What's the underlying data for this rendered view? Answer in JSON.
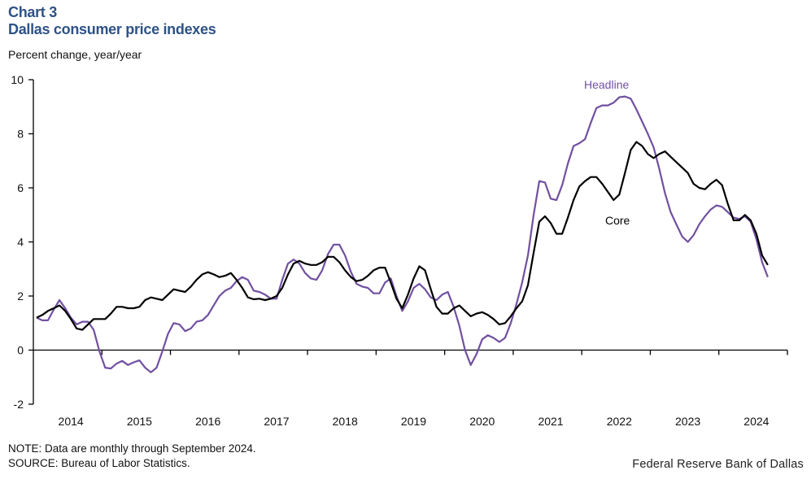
{
  "header": {
    "chart_number": "Chart 3",
    "title": "Dallas consumer price indexes",
    "units": "Percent change, year/year"
  },
  "footer": {
    "note": "NOTE: Data are monthly through September 2024.",
    "source": "SOURCE: Bureau of Labor Statistics.",
    "credit": "Federal Reserve Bank of Dallas"
  },
  "colors": {
    "title": "#2e5286",
    "headline": "#7150a0",
    "core": "#000000"
  },
  "chart_data": {
    "type": "line",
    "title": "Dallas consumer price indexes",
    "ylabel": "Percent change, year/year",
    "xlabel": "",
    "ylim": [
      -2,
      10
    ],
    "yticks": [
      -2,
      0,
      2,
      4,
      6,
      8,
      10
    ],
    "xticklabels": [
      "2014",
      "2015",
      "2016",
      "2017",
      "2018",
      "2019",
      "2020",
      "2021",
      "2022",
      "2023",
      "2024"
    ],
    "x_start": "2014-01",
    "x_end": "2024-09",
    "frequency": "monthly",
    "grid": false,
    "legend": "inline labels",
    "series": [
      {
        "name": "Headline",
        "label_position": "above-peak",
        "values": [
          1.2,
          1.1,
          1.1,
          1.5,
          1.85,
          1.55,
          1.2,
          0.95,
          1.05,
          1.05,
          0.75,
          -0.05,
          -0.65,
          -0.68,
          -0.5,
          -0.4,
          -0.55,
          -0.45,
          -0.38,
          -0.65,
          -0.82,
          -0.65,
          -0.05,
          0.6,
          1.0,
          0.95,
          0.7,
          0.8,
          1.05,
          1.1,
          1.3,
          1.65,
          2.0,
          2.2,
          2.3,
          2.55,
          2.7,
          2.6,
          2.2,
          2.15,
          2.05,
          1.9,
          1.9,
          2.6,
          3.2,
          3.35,
          3.2,
          2.85,
          2.65,
          2.6,
          2.95,
          3.55,
          3.9,
          3.9,
          3.5,
          2.9,
          2.45,
          2.35,
          2.3,
          2.1,
          2.1,
          2.5,
          2.65,
          2.0,
          1.45,
          1.8,
          2.3,
          2.45,
          2.25,
          1.95,
          1.85,
          2.05,
          2.15,
          1.6,
          0.9,
          0.0,
          -0.55,
          -0.15,
          0.4,
          0.55,
          0.45,
          0.3,
          0.45,
          1.0,
          1.7,
          2.5,
          3.5,
          5.0,
          6.25,
          6.2,
          5.6,
          5.55,
          6.1,
          6.9,
          7.55,
          7.65,
          7.8,
          8.4,
          8.95,
          9.05,
          9.05,
          9.15,
          9.35,
          9.38,
          9.3,
          8.9,
          8.45,
          8.0,
          7.5,
          6.7,
          5.8,
          5.1,
          4.65,
          4.2,
          4.0,
          4.25,
          4.65,
          4.95,
          5.2,
          5.35,
          5.3,
          5.1,
          4.9,
          4.85,
          4.95,
          4.75,
          4.1,
          3.25,
          2.7
        ]
      },
      {
        "name": "Core",
        "label_position": "below-line",
        "values": [
          1.2,
          1.3,
          1.45,
          1.55,
          1.65,
          1.45,
          1.15,
          0.8,
          0.75,
          0.95,
          1.15,
          1.15,
          1.15,
          1.35,
          1.6,
          1.6,
          1.55,
          1.55,
          1.6,
          1.85,
          1.95,
          1.9,
          1.85,
          2.05,
          2.25,
          2.2,
          2.15,
          2.35,
          2.6,
          2.8,
          2.88,
          2.8,
          2.7,
          2.75,
          2.85,
          2.6,
          2.3,
          1.95,
          1.88,
          1.9,
          1.85,
          1.9,
          2.0,
          2.3,
          2.8,
          3.2,
          3.3,
          3.2,
          3.15,
          3.15,
          3.25,
          3.45,
          3.45,
          3.25,
          2.95,
          2.7,
          2.55,
          2.6,
          2.75,
          2.95,
          3.05,
          3.05,
          2.5,
          1.9,
          1.55,
          2.05,
          2.65,
          3.1,
          2.95,
          2.25,
          1.6,
          1.35,
          1.35,
          1.55,
          1.65,
          1.45,
          1.25,
          1.35,
          1.4,
          1.3,
          1.15,
          0.95,
          1.0,
          1.25,
          1.55,
          1.8,
          2.4,
          3.6,
          4.75,
          4.95,
          4.7,
          4.3,
          4.3,
          4.9,
          5.55,
          6.05,
          6.25,
          6.4,
          6.4,
          6.15,
          5.85,
          5.55,
          5.75,
          6.55,
          7.4,
          7.7,
          7.55,
          7.25,
          7.1,
          7.25,
          7.35,
          7.15,
          6.95,
          6.75,
          6.55,
          6.15,
          6.0,
          5.95,
          6.15,
          6.3,
          6.1,
          5.4,
          4.8,
          4.8,
          5.0,
          4.8,
          4.3,
          3.5,
          3.15
        ]
      }
    ]
  }
}
